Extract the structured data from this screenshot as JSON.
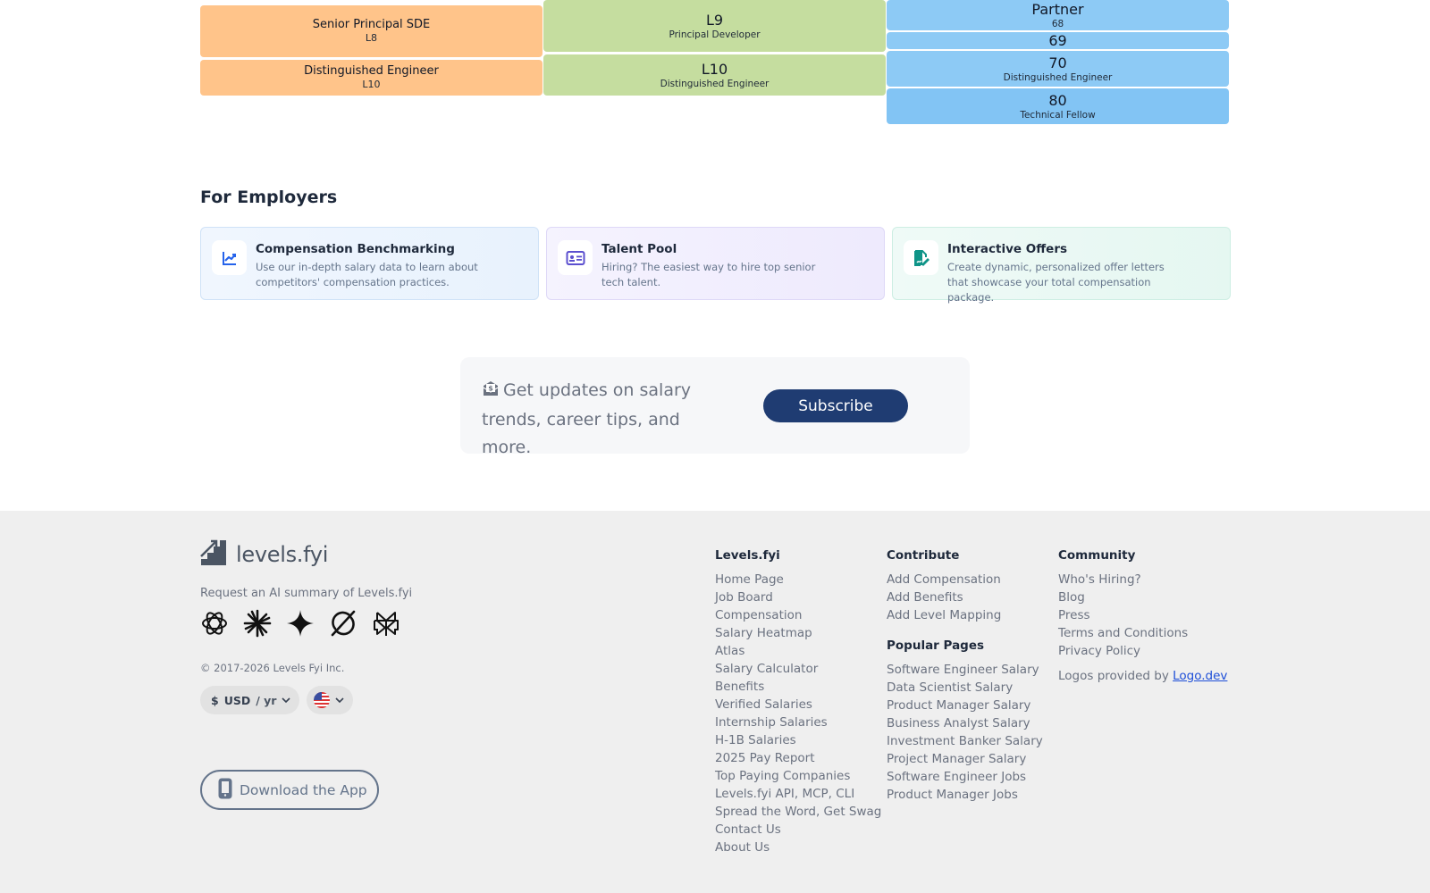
{
  "levels": {
    "company_a": [
      {
        "title": "Senior Principal SDE",
        "level": "L8"
      },
      {
        "title": "Distinguished Engineer",
        "level": "L10"
      }
    ],
    "company_b": [
      {
        "level": "L9",
        "title": "Principal Developer"
      },
      {
        "level": "L10",
        "title": "Distinguished Engineer"
      }
    ],
    "company_c": [
      {
        "level": "Partner",
        "title": "68"
      },
      {
        "level": "69",
        "title": ""
      },
      {
        "level": "70",
        "title": "Distinguished Engineer"
      },
      {
        "level": "80",
        "title": "Technical Fellow"
      }
    ]
  },
  "employers": {
    "heading": "For Employers",
    "cards": [
      {
        "title": "Compensation Benchmarking",
        "description": "Use our in-depth salary data to learn about competitors' compensation practices.",
        "icon": "chart-line-icon",
        "color": "#2563eb"
      },
      {
        "title": "Talent Pool",
        "description": "Hiring? The easiest way to hire top senior tech talent.",
        "icon": "id-card-icon",
        "color": "#5b4fcf"
      },
      {
        "title": "Interactive Offers",
        "description": "Create dynamic, personalized offer letters that showcase your total compensation package.",
        "icon": "signed-document-icon",
        "color": "#0f9488"
      }
    ]
  },
  "subscribe": {
    "text": "Get updates on salary trends, career tips, and more.",
    "button": "Subscribe"
  },
  "footer": {
    "logo": "levels.fyi",
    "ai_label": "Request an AI summary of Levels.fyi",
    "ai_icons": [
      "chatgpt-icon",
      "claude-icon",
      "gemini-icon",
      "grok-icon",
      "perplexity-icon"
    ],
    "copyright": "© 2017-2026 Levels Fyi Inc.",
    "currency": {
      "symbol": "$",
      "code": "USD",
      "period": "/ yr"
    },
    "download": "Download the App",
    "columns": {
      "levels": {
        "heading": "Levels.fyi",
        "links": [
          "Home Page",
          "Job Board",
          "Compensation",
          "Salary Heatmap",
          "Atlas",
          "Salary Calculator",
          "Benefits",
          "Verified Salaries",
          "Internship Salaries",
          "H-1B Salaries",
          "2025 Pay Report",
          "Top Paying Companies",
          "Levels.fyi API, MCP, CLI",
          "Spread the Word, Get Swag",
          "Contact Us",
          "About Us"
        ]
      },
      "contribute": {
        "heading": "Contribute",
        "links": [
          "Add Compensation",
          "Add Benefits",
          "Add Level Mapping"
        ]
      },
      "popular": {
        "heading": "Popular Pages",
        "links": [
          "Software Engineer Salary",
          "Data Scientist Salary",
          "Product Manager Salary",
          "Business Analyst Salary",
          "Investment Banker Salary",
          "Project Manager Salary",
          "Software Engineer Jobs",
          "Product Manager Jobs"
        ]
      },
      "community": {
        "heading": "Community",
        "links": [
          "Who's Hiring?",
          "Blog",
          "Press",
          "Terms and Conditions",
          "Privacy Policy"
        ],
        "logos_prefix": "Logos provided by",
        "logos_link": "Logo.dev"
      }
    }
  }
}
